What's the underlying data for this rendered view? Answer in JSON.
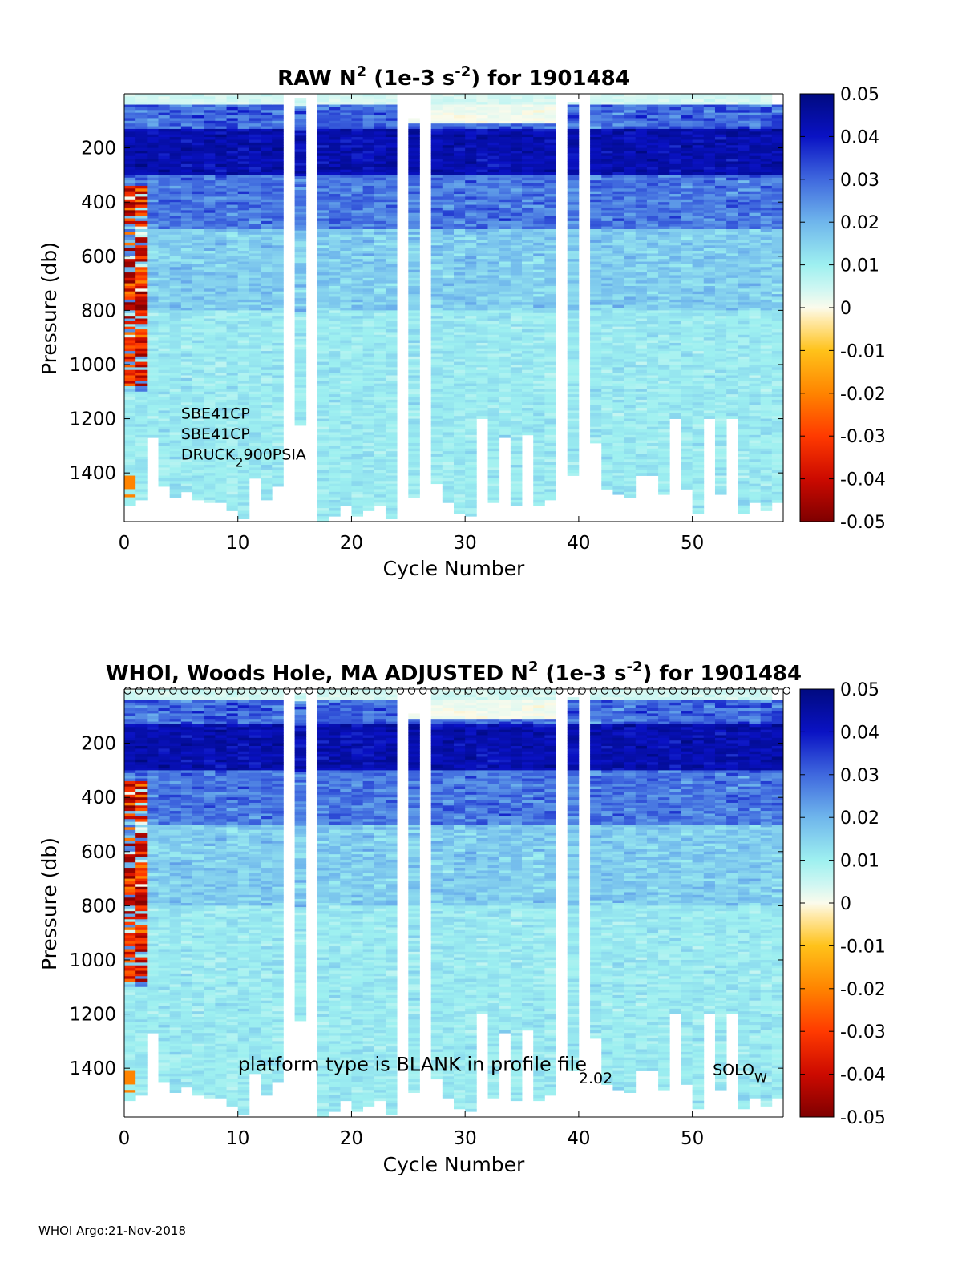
{
  "footer": "WHOI Argo:21-Nov-2018",
  "colorscale": {
    "stops": [
      {
        "v": -0.05,
        "color": "#7f0000"
      },
      {
        "v": -0.04,
        "color": "#cc0a00"
      },
      {
        "v": -0.03,
        "color": "#ff3a00"
      },
      {
        "v": -0.02,
        "color": "#ff8400"
      },
      {
        "v": -0.01,
        "color": "#ffc21a"
      },
      {
        "v": -0.003,
        "color": "#ffe9a8"
      },
      {
        "v": 0.0,
        "color": "#fbfbec"
      },
      {
        "v": 0.004,
        "color": "#d2f7f2"
      },
      {
        "v": 0.01,
        "color": "#9ef0f0"
      },
      {
        "v": 0.02,
        "color": "#6fb6ec"
      },
      {
        "v": 0.03,
        "color": "#3f68de"
      },
      {
        "v": 0.04,
        "color": "#0a12c4"
      },
      {
        "v": 0.05,
        "color": "#000a80"
      }
    ]
  },
  "chart_data": [
    {
      "type": "heatmap",
      "panel": "raw",
      "title_prefix": "RAW N",
      "title_sup": "2",
      "title_mid": " (1e-3 s",
      "title_sup2": "-2",
      "title_suffix": ") for 1901484",
      "xlabel": "Cycle Number",
      "ylabel": "Pressure (db)",
      "xlim": [
        0,
        58
      ],
      "ylim": [
        1580,
        0
      ],
      "xticks": [
        0,
        10,
        20,
        30,
        40,
        50
      ],
      "yticks": [
        200,
        400,
        600,
        800,
        1000,
        1200,
        1400
      ],
      "clim": [
        -0.05,
        0.05
      ],
      "cticks": [
        "0.05",
        "0.04",
        "0.03",
        "0.02",
        "0.01",
        "0",
        "-0.01",
        "-0.02",
        "-0.03",
        "-0.04",
        "-0.05"
      ],
      "annotations": [
        {
          "text": "SBE41CP",
          "cycle": 5.0,
          "pressure": 1200
        },
        {
          "text": "SBE41CP",
          "cycle": 5.0,
          "pressure": 1275
        },
        {
          "text": "DRUCK",
          "sub": "2",
          "after": "900PSIA",
          "cycle": 5.0,
          "pressure": 1350
        }
      ],
      "top_markers": false
    },
    {
      "type": "heatmap",
      "panel": "adjusted",
      "title_prefix": "WHOI, Woods Hole, MA  ADJUSTED N",
      "title_sup": "2",
      "title_mid": " (1e-3 s",
      "title_sup2": "-2",
      "title_suffix": ") for 1901484",
      "xlabel": "Cycle Number",
      "ylabel": "Pressure (db)",
      "xlim": [
        0,
        58
      ],
      "ylim": [
        1580,
        0
      ],
      "xticks": [
        0,
        10,
        20,
        30,
        40,
        50
      ],
      "yticks": [
        200,
        400,
        600,
        800,
        1000,
        1200,
        1400
      ],
      "clim": [
        -0.05,
        0.05
      ],
      "cticks": [
        "0.05",
        "0.04",
        "0.03",
        "0.02",
        "0.01",
        "0",
        "-0.01",
        "-0.02",
        "-0.03",
        "-0.04",
        "-0.05"
      ],
      "annotations": [
        {
          "text": "platform type is BLANK in profile file",
          "cycle": 10.0,
          "pressure": 1410,
          "big": true
        },
        {
          "text": "2.02",
          "cycle": 40.0,
          "pressure": 1455
        },
        {
          "text": "SOLO",
          "sub": "W",
          "cycle": 51.8,
          "pressure": 1425
        }
      ],
      "top_markers": true
    }
  ],
  "profiles": {
    "description_free": true,
    "cycles": [
      {
        "c": 0,
        "top": 0,
        "bottom": 1520
      },
      {
        "c": 1,
        "top": 0,
        "bottom": 1500
      },
      {
        "c": 2,
        "top": 0,
        "bottom": 1270
      },
      {
        "c": 3,
        "top": 0,
        "bottom": 1450
      },
      {
        "c": 4,
        "top": 0,
        "bottom": 1490
      },
      {
        "c": 5,
        "top": 0,
        "bottom": 1470
      },
      {
        "c": 6,
        "top": 0,
        "bottom": 1500
      },
      {
        "c": 7,
        "top": 0,
        "bottom": 1510
      },
      {
        "c": 8,
        "top": 0,
        "bottom": 1510
      },
      {
        "c": 9,
        "top": 0,
        "bottom": 1540
      },
      {
        "c": 10,
        "top": 0,
        "bottom": 1570
      },
      {
        "c": 11,
        "top": 0,
        "bottom": 1420
      },
      {
        "c": 12,
        "top": 0,
        "bottom": 1500
      },
      {
        "c": 13,
        "top": 0,
        "bottom": 1450
      },
      {
        "c": 15,
        "top": 15,
        "bottom": 1220
      },
      {
        "c": 17,
        "top": 0,
        "bottom": 1580
      },
      {
        "c": 18,
        "top": 0,
        "bottom": 1560
      },
      {
        "c": 19,
        "top": 0,
        "bottom": 1520
      },
      {
        "c": 20,
        "top": 0,
        "bottom": 1560
      },
      {
        "c": 21,
        "top": 0,
        "bottom": 1540
      },
      {
        "c": 22,
        "top": 0,
        "bottom": 1520
      },
      {
        "c": 23,
        "top": 0,
        "bottom": 1570
      },
      {
        "c": 25,
        "top": 90,
        "bottom": 1490
      },
      {
        "c": 27,
        "top": 0,
        "bottom": 1440
      },
      {
        "c": 28,
        "top": 0,
        "bottom": 1510
      },
      {
        "c": 29,
        "top": 0,
        "bottom": 1550
      },
      {
        "c": 30,
        "top": 0,
        "bottom": 1560
      },
      {
        "c": 31,
        "top": 0,
        "bottom": 1200
      },
      {
        "c": 32,
        "top": 0,
        "bottom": 1510
      },
      {
        "c": 33,
        "top": 0,
        "bottom": 1270
      },
      {
        "c": 34,
        "top": 0,
        "bottom": 1520
      },
      {
        "c": 35,
        "top": 0,
        "bottom": 1260
      },
      {
        "c": 36,
        "top": 0,
        "bottom": 1520
      },
      {
        "c": 37,
        "top": 0,
        "bottom": 1500
      },
      {
        "c": 39,
        "top": 30,
        "bottom": 1410
      },
      {
        "c": 41,
        "top": 0,
        "bottom": 1290
      },
      {
        "c": 42,
        "top": 0,
        "bottom": 1460
      },
      {
        "c": 43,
        "top": 0,
        "bottom": 1480
      },
      {
        "c": 44,
        "top": 0,
        "bottom": 1490
      },
      {
        "c": 45,
        "top": 0,
        "bottom": 1410
      },
      {
        "c": 46,
        "top": 0,
        "bottom": 1410
      },
      {
        "c": 47,
        "top": 0,
        "bottom": 1480
      },
      {
        "c": 48,
        "top": 0,
        "bottom": 1200
      },
      {
        "c": 49,
        "top": 0,
        "bottom": 1460
      },
      {
        "c": 50,
        "top": 0,
        "bottom": 1550
      },
      {
        "c": 51,
        "top": 0,
        "bottom": 1200
      },
      {
        "c": 52,
        "top": 0,
        "bottom": 1480
      },
      {
        "c": 53,
        "top": 0,
        "bottom": 1200
      },
      {
        "c": 54,
        "top": 0,
        "bottom": 1550
      },
      {
        "c": 55,
        "top": 0,
        "bottom": 1510
      },
      {
        "c": 56,
        "top": 0,
        "bottom": 1540
      },
      {
        "c": 57,
        "top": 40,
        "bottom": 1510
      }
    ]
  }
}
